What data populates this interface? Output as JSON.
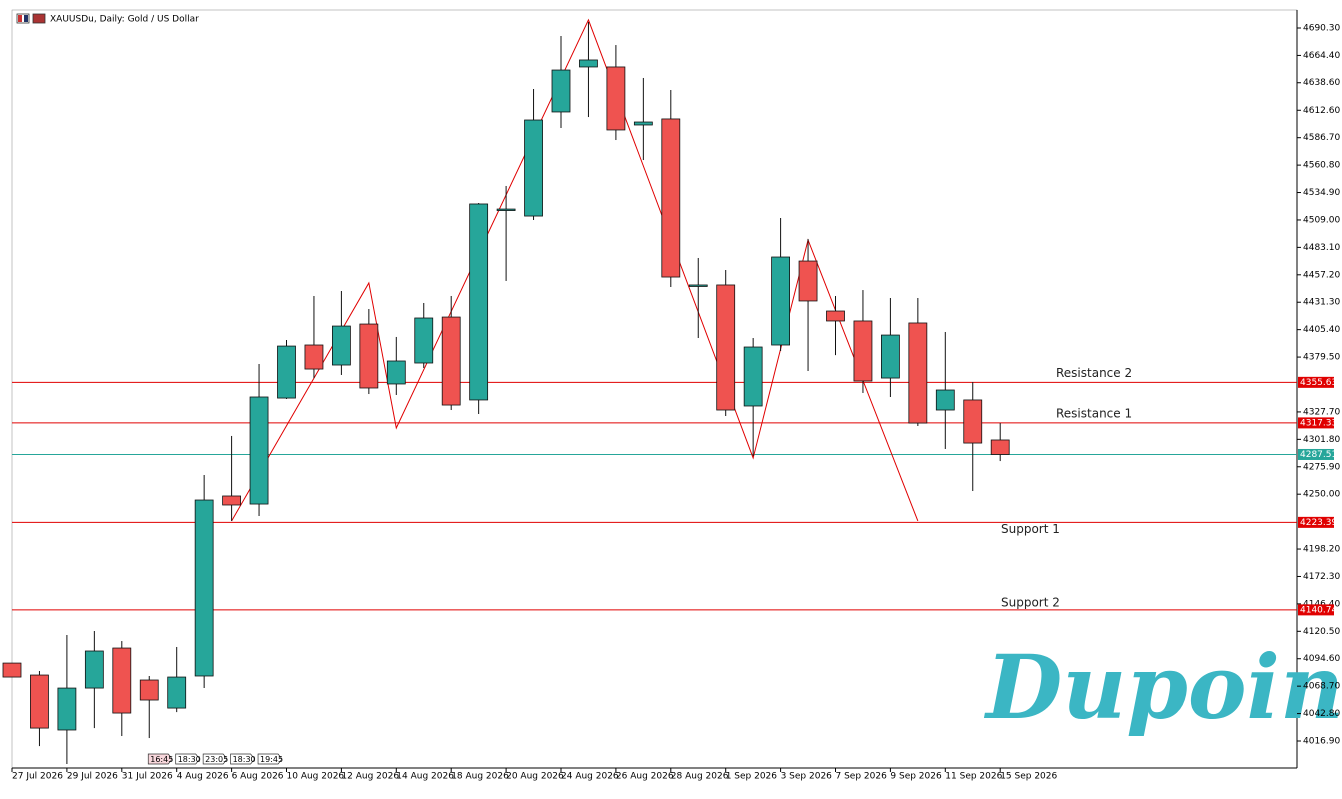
{
  "chart_data": {
    "type": "candlestick",
    "title": "XAUUSDu, Daily: Gold / US Dollar",
    "watermark": "Dupoin",
    "categories": [
      "27 Jul 2026",
      null,
      "29 Jul 2026",
      null,
      "31 Jul 2026",
      null,
      "4 Aug 2026",
      null,
      "6 Aug 2026",
      null,
      "10 Aug 2026",
      null,
      "12 Aug 2026",
      null,
      "14 Aug 2026",
      null,
      "18 Aug 2026",
      null,
      "20 Aug 2026",
      null,
      "24 Aug 2026",
      null,
      "26 Aug 2026",
      null,
      "28 Aug 2026",
      null,
      "1 Sep 2026",
      null,
      "3 Sep 2026",
      null,
      "7 Sep 2026",
      null,
      "9 Sep 2026",
      null,
      "11 Sep 2026",
      null,
      "15 Sep 2026"
    ],
    "open": [
      4090.5,
      4079.2,
      4027.3,
      4066.9,
      4104.7,
      4074.5,
      4048.0,
      4078.3,
      4248.3,
      4240.7,
      4340.8,
      4390.9,
      4372.0,
      4410.7,
      4354.1,
      4373.9,
      4417.3,
      4339.0,
      4518.4,
      4512.7,
      4611.0,
      4653.5,
      4653.5,
      4598.7,
      4604.4,
      4446.6,
      4447.6,
      4333.3,
      4390.9,
      4470.2,
      4423.0,
      4413.6,
      4359.7,
      4411.7,
      4329.5,
      4339.0,
      4301.2
    ],
    "high": [
      4090.5,
      4083.0,
      4117.0,
      4120.8,
      4111.3,
      4078.3,
      4105.7,
      4268.1,
      4305.0,
      4373.0,
      4395.6,
      4437.2,
      4441.9,
      4424.9,
      4398.5,
      4430.6,
      4437.2,
      4525.0,
      4541.1,
      4632.7,
      4682.7,
      4696.0,
      4674.2,
      4643.1,
      4631.7,
      4473.1,
      4461.7,
      4397.5,
      4510.8,
      4491.0,
      4437.2,
      4442.8,
      4435.3,
      4435.3,
      4403.2,
      4355.9,
      4317.2
    ],
    "low": [
      4077.3,
      4012.1,
      3995.2,
      4029.1,
      4021.6,
      4019.7,
      4044.2,
      4066.9,
      4224.7,
      4229.4,
      4339.9,
      4359.7,
      4362.6,
      4344.6,
      4343.7,
      4369.2,
      4329.5,
      4325.7,
      4451.4,
      4509.0,
      4595.9,
      4606.2,
      4584.5,
      4565.6,
      4445.7,
      4397.5,
      4323.8,
      4286.1,
      4385.2,
      4366.3,
      4381.4,
      4345.6,
      4341.8,
      4314.4,
      4292.7,
      4253.0,
      4281.3
    ],
    "close": [
      4077.3,
      4029.1,
      4066.9,
      4101.9,
      4043.3,
      4055.6,
      4077.3,
      4244.5,
      4239.8,
      4341.8,
      4389.9,
      4368.2,
      4408.8,
      4350.3,
      4375.8,
      4416.4,
      4334.2,
      4524.1,
      4519.3,
      4603.4,
      4650.6,
      4660.1,
      4594.0,
      4601.5,
      4455.1,
      4447.6,
      4329.5,
      4389.0,
      4474.0,
      4432.5,
      4413.6,
      4356.9,
      4400.3,
      4317.2,
      4348.4,
      4298.3,
      4287.5
    ],
    "up_color": "#26a69a",
    "down_color": "#ef5350",
    "zigzag": {
      "color": "#e00000",
      "x": [
        8,
        13,
        14,
        21,
        27,
        29,
        33
      ],
      "values": [
        4224.7,
        4449.5,
        4312.5,
        4697.9,
        4284.2,
        4490.1,
        4224.7
      ]
    },
    "levels": [
      {
        "name": "Resistance 2",
        "value": 4355.63,
        "color": "#e00000"
      },
      {
        "name": "Resistance 1",
        "value": 4317.33,
        "color": "#e00000"
      },
      {
        "value": 4287.51,
        "color": "#26a69a"
      },
      {
        "name": "Support 1",
        "value": 4223.39,
        "color": "#e00000"
      },
      {
        "name": "Support 2",
        "value": 4140.74,
        "color": "#e00000"
      }
    ],
    "time_markers": [
      {
        "x": 5,
        "label": "16:45"
      },
      {
        "x": 6,
        "label": "18:30"
      },
      {
        "x": 7,
        "label": "23:05"
      },
      {
        "x": 8,
        "label": "18:30"
      },
      {
        "x": 9,
        "label": "19:45"
      }
    ],
    "ylim": [
      3991.4,
      4707.3
    ],
    "yticks": [
      {
        "value": 4690.3,
        "label": "4690.30"
      },
      {
        "value": 4664.4,
        "label": "4664.40"
      },
      {
        "value": 4638.6,
        "label": "4638.60"
      },
      {
        "value": 4612.6,
        "label": "4612.60"
      },
      {
        "value": 4586.7,
        "label": "4586.70"
      },
      {
        "value": 4560.8,
        "label": "4560.80"
      },
      {
        "value": 4534.9,
        "label": "4534.90"
      },
      {
        "value": 4509.0,
        "label": "4509.00"
      },
      {
        "value": 4483.1,
        "label": "4483.10"
      },
      {
        "value": 4457.2,
        "label": "4457.20"
      },
      {
        "value": 4431.3,
        "label": "4431.30"
      },
      {
        "value": 4405.4,
        "label": "4405.40"
      },
      {
        "value": 4379.5,
        "label": "4379.50"
      },
      {
        "value": 4327.7,
        "label": "4327.70"
      },
      {
        "value": 4301.8,
        "label": "4301.80"
      },
      {
        "value": 4275.9,
        "label": "4275.90"
      },
      {
        "value": 4250.0,
        "label": "4250.00"
      },
      {
        "value": 4198.2,
        "label": "4198.20"
      },
      {
        "value": 4172.3,
        "label": "4172.30"
      },
      {
        "value": 4146.4,
        "label": "4146.40"
      },
      {
        "value": 4120.5,
        "label": "4120.50"
      },
      {
        "value": 4094.6,
        "label": "4094.60"
      },
      {
        "value": 4068.7,
        "label": "4068.70"
      },
      {
        "value": 4042.8,
        "label": "4042.80"
      },
      {
        "value": 4016.9,
        "label": "4016.90"
      }
    ],
    "grid": false
  }
}
